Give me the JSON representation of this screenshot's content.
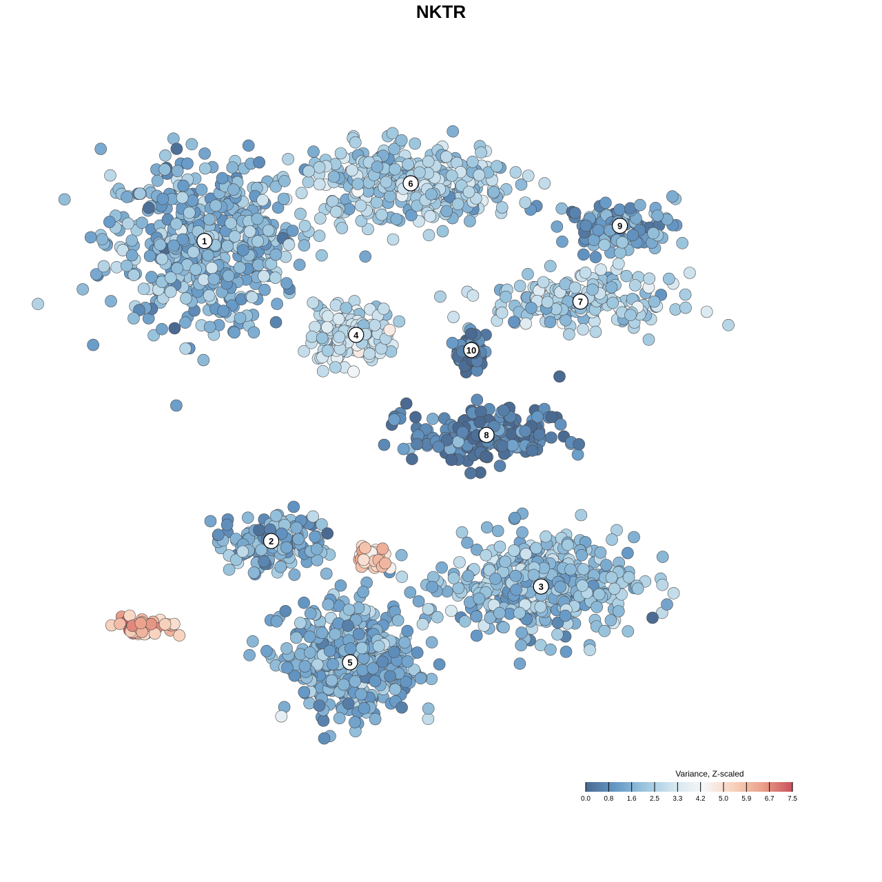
{
  "chart_data": {
    "type": "scatter",
    "title": "NKTR",
    "xlabel": "",
    "ylabel": "",
    "grid": false,
    "legend_placement": "bottom-right",
    "colorbar": {
      "title": "Variance, Z-scaled",
      "ticks": [
        "0.0",
        "0.8",
        "1.6",
        "2.5",
        "3.3",
        "4.2",
        "5.0",
        "5.9",
        "6.7",
        "7.5"
      ],
      "range": [
        0.0,
        7.5
      ],
      "colors": [
        "#4a6a92",
        "#6699c7",
        "#9cc6de",
        "#d4e6f0",
        "#f7f7f7",
        "#f8d2bd",
        "#eba08a",
        "#c9535e"
      ]
    },
    "clusters": [
      {
        "label": "1",
        "x": -7.8,
        "y": 6.6,
        "spread": [
          3.6,
          3.0
        ],
        "n": 520,
        "mean_value": 1.7
      },
      {
        "label": "2",
        "x": -5.6,
        "y": -3.3,
        "spread": [
          2.0,
          1.1
        ],
        "n": 130,
        "mean_value": 1.5
      },
      {
        "label": "3",
        "x": 3.3,
        "y": -4.8,
        "spread": [
          3.4,
          1.8
        ],
        "n": 420,
        "mean_value": 1.8
      },
      {
        "label": "4",
        "x": -2.8,
        "y": 3.5,
        "spread": [
          1.5,
          1.1
        ],
        "n": 170,
        "mean_value": 3.0
      },
      {
        "label": "5",
        "x": -3.0,
        "y": -7.3,
        "spread": [
          2.4,
          2.0
        ],
        "n": 420,
        "mean_value": 1.6
      },
      {
        "label": "6",
        "x": -1.0,
        "y": 8.5,
        "spread": [
          3.8,
          1.4
        ],
        "n": 330,
        "mean_value": 2.3
      },
      {
        "label": "7",
        "x": 4.6,
        "y": 4.6,
        "spread": [
          3.4,
          1.0
        ],
        "n": 190,
        "mean_value": 2.4
      },
      {
        "label": "8",
        "x": 1.5,
        "y": 0.2,
        "spread": [
          2.8,
          1.0
        ],
        "n": 200,
        "mean_value": 0.5
      },
      {
        "label": "9",
        "x": 5.9,
        "y": 7.1,
        "spread": [
          2.0,
          0.9
        ],
        "n": 110,
        "mean_value": 1.3
      },
      {
        "label": "10",
        "x": 1.0,
        "y": 3.0,
        "spread": [
          0.6,
          0.6
        ],
        "n": 45,
        "mean_value": 0.3
      }
    ],
    "high_expression_groups": [
      {
        "x": -9.8,
        "y": -6.1,
        "spread": [
          1.1,
          0.4
        ],
        "n": 45,
        "mean_value": 6.0
      },
      {
        "x": -2.2,
        "y": -3.9,
        "spread": [
          0.6,
          0.5
        ],
        "n": 40,
        "mean_value": 5.2
      }
    ]
  }
}
